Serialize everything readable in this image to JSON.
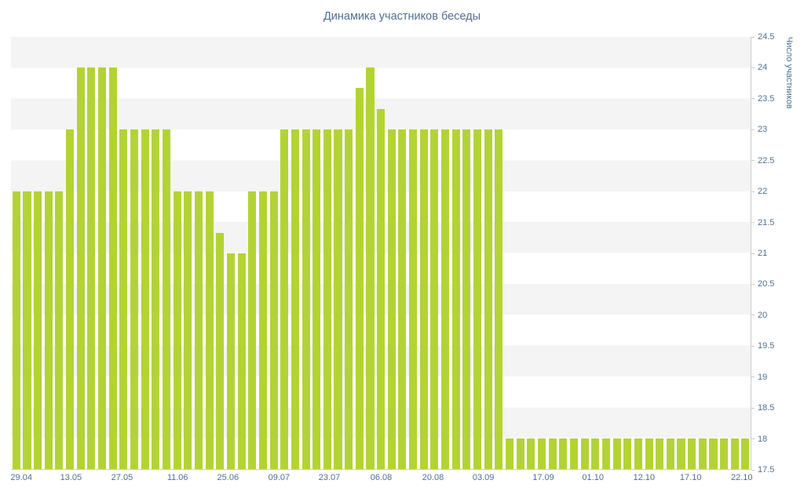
{
  "chart_data": {
    "type": "bar",
    "title": "Динамика участников беседы",
    "ylabel": "Число участников",
    "xlabel": "",
    "ylim": [
      17.5,
      24.5
    ],
    "y_tick_step": 0.5,
    "grid": "striped-horizontal-bands",
    "legend_position": "none",
    "y_tick_labels": [
      "24.5",
      "24",
      "23.5",
      "23",
      "22.5",
      "22",
      "21.5",
      "21",
      "20.5",
      "20",
      "19.5",
      "19",
      "18.5",
      "18",
      "17.5"
    ],
    "x_ticks": [
      {
        "label": "29.04",
        "percent": 1.4
      },
      {
        "label": "13.05",
        "percent": 8.1
      },
      {
        "label": "27.05",
        "percent": 15.0
      },
      {
        "label": "11.06",
        "percent": 22.5
      },
      {
        "label": "25.06",
        "percent": 29.3
      },
      {
        "label": "09.07",
        "percent": 36.2
      },
      {
        "label": "23.07",
        "percent": 43.0
      },
      {
        "label": "06.08",
        "percent": 50.0
      },
      {
        "label": "20.08",
        "percent": 57.0
      },
      {
        "label": "03.09",
        "percent": 63.8
      },
      {
        "label": "17.09",
        "percent": 71.9
      },
      {
        "label": "01.10",
        "percent": 78.6
      },
      {
        "label": "12.10",
        "percent": 85.5
      },
      {
        "label": "17.10",
        "percent": 91.8
      },
      {
        "label": "22.10",
        "percent": 98.7
      }
    ],
    "values": [
      22,
      22,
      22,
      22,
      22,
      23,
      24,
      24,
      24,
      24,
      23,
      23,
      23,
      23,
      23,
      22,
      22,
      22,
      22,
      21.33,
      21,
      21,
      22,
      22,
      22,
      23,
      23,
      23,
      23,
      23,
      23,
      23,
      23.67,
      24,
      23.33,
      23,
      23,
      23,
      23,
      23,
      23,
      23,
      23,
      23,
      23,
      23,
      18,
      18,
      18,
      18,
      18,
      18,
      18,
      18,
      18,
      18,
      18,
      18,
      18,
      18,
      18,
      18,
      18,
      18,
      18,
      18,
      18,
      18,
      18
    ],
    "colors": {
      "bar": "#b3d335",
      "text": "#4f6f92",
      "stripe": "#f4f4f4",
      "axis": "#cccccc",
      "background": "#ffffff"
    }
  }
}
